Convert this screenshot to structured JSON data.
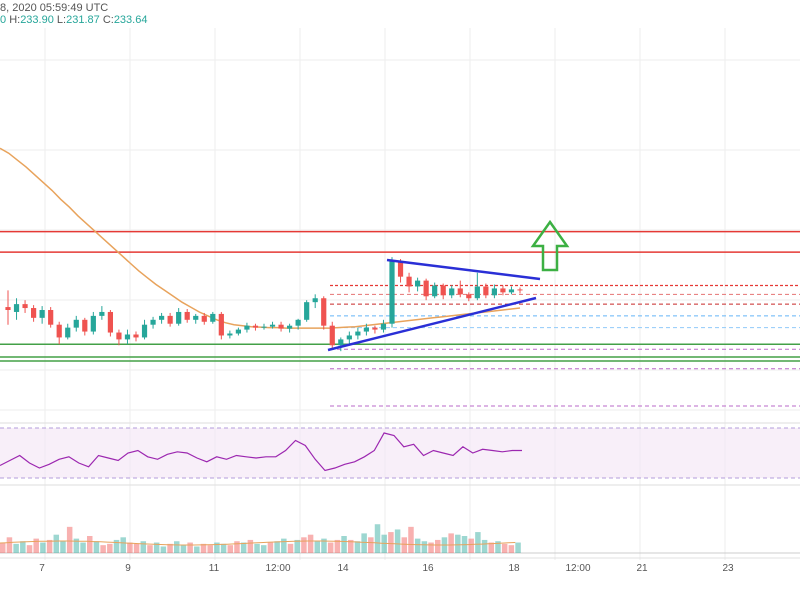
{
  "header": {
    "date_fragment": "8, 2020 05:59:49 UTC",
    "open_fragment": "0",
    "high_label": "H:",
    "high": "233.90",
    "low_label": "L:",
    "low": "231.87",
    "close_label": "C:",
    "close": "233.64"
  },
  "colors": {
    "up": "#26a69a",
    "down": "#ef5350",
    "ma": "#e8a35c",
    "trendline": "#2a2fd6",
    "resistance": "#e53935",
    "support": "#43a047",
    "rsi": "#9c27b0",
    "arrow": "#3cb043",
    "grid": "#eeeeee"
  },
  "annotations": {
    "arrow": "up-arrow",
    "pattern": "triangle"
  },
  "chart_data": {
    "type": "candlestick",
    "grid": true,
    "x_ticks": [
      "7",
      "9",
      "11",
      "12:00",
      "14",
      "16",
      "18",
      "12:00",
      "21",
      "23"
    ],
    "candles": [
      [
        0.3,
        0.0,
        2.0,
        -1.5
      ],
      [
        -0.2,
        0.6,
        1.2,
        -1.0
      ],
      [
        0.6,
        0.2,
        1.0,
        -0.3
      ],
      [
        0.2,
        -0.8,
        0.5,
        -1.2
      ],
      [
        -0.8,
        0.0,
        0.4,
        -1.4
      ],
      [
        0.0,
        -1.5,
        0.3,
        -1.8
      ],
      [
        -1.5,
        -2.8,
        -1.2,
        -3.5
      ],
      [
        -2.8,
        -1.8,
        -1.4,
        -3.0
      ],
      [
        -1.8,
        -1.0,
        -0.6,
        -2.2
      ],
      [
        -1.0,
        -2.2,
        -0.8,
        -2.6
      ],
      [
        -2.2,
        -0.6,
        -0.2,
        -2.5
      ],
      [
        -0.6,
        -0.2,
        0.4,
        -1.0
      ],
      [
        -0.2,
        -2.3,
        0.0,
        -2.7
      ],
      [
        -2.3,
        -3.0,
        -2.0,
        -3.6
      ],
      [
        -3.0,
        -2.5,
        -2.0,
        -3.5
      ],
      [
        -2.5,
        -2.8,
        -2.2,
        -3.2
      ],
      [
        -2.8,
        -1.5,
        -1.0,
        -3.0
      ],
      [
        -1.5,
        -1.0,
        -0.7,
        -1.9
      ],
      [
        -1.0,
        -0.6,
        -0.3,
        -1.4
      ],
      [
        -0.6,
        -1.4,
        -0.3,
        -1.7
      ],
      [
        -1.4,
        -0.2,
        0.2,
        -1.6
      ],
      [
        -0.2,
        -1.0,
        0.1,
        -1.3
      ],
      [
        -1.0,
        -0.6,
        -0.4,
        -1.4
      ],
      [
        -0.6,
        -1.2,
        -0.3,
        -1.5
      ],
      [
        -1.2,
        -0.4,
        -0.2,
        -1.4
      ],
      [
        -0.4,
        -2.6,
        -0.2,
        -3.0
      ],
      [
        -2.6,
        -2.4,
        -2.1,
        -2.9
      ],
      [
        -2.4,
        -2.0,
        -1.8,
        -2.6
      ],
      [
        -2.0,
        -1.6,
        -1.3,
        -2.3
      ],
      [
        -1.6,
        -1.8,
        -1.4,
        -2.1
      ],
      [
        -1.8,
        -1.7,
        -1.4,
        -2.0
      ],
      [
        -1.7,
        -1.5,
        -1.2,
        -1.9
      ],
      [
        -1.5,
        -1.9,
        -1.2,
        -2.2
      ],
      [
        -1.9,
        -1.6,
        -1.4,
        -2.3
      ],
      [
        -1.6,
        -1.0,
        -0.9,
        -2.0
      ],
      [
        -1.0,
        0.8,
        1.0,
        -1.2
      ],
      [
        0.8,
        1.2,
        1.6,
        0.2
      ],
      [
        1.2,
        -1.6,
        1.4,
        -2.0
      ],
      [
        -1.6,
        -3.6,
        -1.2,
        -4.0
      ],
      [
        -3.6,
        -3.0,
        -2.8,
        -4.2
      ],
      [
        -3.0,
        -2.6,
        -2.2,
        -3.6
      ],
      [
        -2.6,
        -2.2,
        -1.8,
        -3.0
      ],
      [
        -2.2,
        -1.8,
        -1.4,
        -2.6
      ],
      [
        -1.8,
        -2.0,
        -1.6,
        -2.4
      ],
      [
        -2.0,
        -1.4,
        -1.0,
        -2.3
      ],
      [
        -1.4,
        5.0,
        5.4,
        -1.8
      ],
      [
        5.0,
        3.4,
        5.2,
        2.8
      ],
      [
        3.4,
        2.4,
        3.8,
        1.8
      ],
      [
        2.4,
        3.0,
        3.3,
        1.9
      ],
      [
        3.0,
        1.4,
        3.2,
        1.0
      ],
      [
        1.4,
        2.5,
        2.8,
        1.2
      ],
      [
        2.5,
        1.5,
        2.7,
        1.1
      ],
      [
        1.5,
        2.2,
        2.5,
        1.2
      ],
      [
        2.2,
        1.6,
        3.0,
        1.3
      ],
      [
        1.6,
        1.2,
        1.8,
        0.9
      ],
      [
        1.2,
        2.4,
        3.8,
        1.0
      ],
      [
        2.4,
        1.5,
        2.7,
        1.2
      ],
      [
        1.5,
        2.2,
        2.6,
        1.2
      ],
      [
        2.2,
        1.8,
        2.5,
        1.5
      ],
      [
        1.8,
        2.1,
        2.4,
        1.6
      ],
      [
        2.1,
        2.0,
        2.3,
        1.7
      ]
    ],
    "moving_average": [
      16.5,
      16.0,
      15.3,
      14.6,
      13.8,
      13.0,
      12.2,
      11.3,
      10.5,
      9.6,
      8.8,
      8.0,
      7.2,
      6.4,
      5.6,
      4.8,
      4.0,
      3.3,
      2.6,
      2.0,
      1.4,
      0.8,
      0.3,
      -0.2,
      -0.6,
      -1.0,
      -1.3,
      -1.5,
      -1.6,
      -1.7,
      -1.75,
      -1.8,
      -1.8,
      -1.85,
      -1.85,
      -1.85,
      -1.85,
      -1.85,
      -1.85,
      -1.8,
      -1.75,
      -1.7,
      -1.6,
      -1.5,
      -1.4,
      -1.3,
      -1.2,
      -1.1,
      -1.0,
      -0.9,
      -0.8,
      -0.7,
      -0.6,
      -0.5,
      -0.4,
      -0.3,
      -0.2,
      -0.1,
      0.0,
      0.1,
      0.2
    ],
    "rsi": [
      40,
      44,
      48,
      42,
      38,
      41,
      45,
      47,
      42,
      39,
      48,
      46,
      44,
      50,
      52,
      47,
      45,
      49,
      51,
      50,
      46,
      43,
      47,
      45,
      48,
      47,
      46,
      47,
      47,
      52,
      60,
      56,
      45,
      36,
      38,
      41,
      43,
      47,
      52,
      66,
      64,
      55,
      57,
      48,
      52,
      50,
      48,
      55,
      50,
      53,
      52,
      51,
      52,
      52
    ],
    "volume": [
      8,
      12,
      7,
      9,
      6,
      11,
      8,
      10,
      14,
      9,
      20,
      11,
      8,
      13,
      9,
      6,
      7,
      10,
      12,
      8,
      7,
      9,
      6,
      8,
      5,
      7,
      9,
      6,
      8,
      5,
      7,
      6,
      8,
      7,
      6,
      9,
      8,
      10,
      7,
      6,
      8,
      9,
      11,
      7,
      10,
      12,
      14,
      9,
      11,
      8,
      10,
      13,
      10,
      9,
      15,
      12,
      22,
      14,
      16,
      18,
      12,
      20,
      11,
      9,
      8,
      10,
      12,
      15,
      14,
      13,
      11,
      16,
      10,
      8,
      9,
      7,
      6,
      8
    ],
    "horizontal_levels": {
      "resistance_solid": [
        7.9,
        5.8
      ],
      "resistance_near": 2.5,
      "supports": [
        -3.5,
        -4.8,
        -5.2
      ]
    }
  }
}
